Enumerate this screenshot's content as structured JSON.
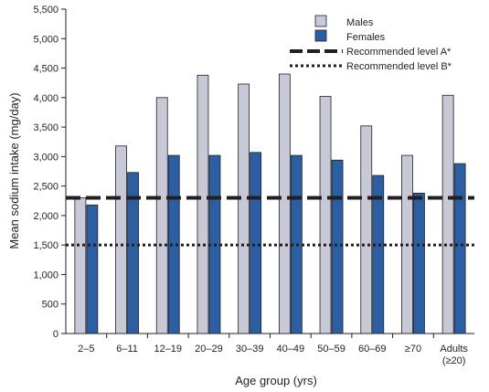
{
  "chart_data": {
    "type": "bar",
    "title": "",
    "xlabel": "Age group (yrs)",
    "ylabel": "Mean sodium intake (mg/day)",
    "ylim": [
      0,
      5500
    ],
    "yticks": [
      0,
      500,
      1000,
      1500,
      2000,
      2500,
      3000,
      3500,
      4000,
      4500,
      5000,
      5500
    ],
    "ytick_labels": [
      "0",
      "500",
      "1,000",
      "1,500",
      "2,000",
      "2,500",
      "3,000",
      "3,500",
      "4,000",
      "4,500",
      "5,000",
      "5,500"
    ],
    "categories": [
      [
        "2–5"
      ],
      [
        "6–11"
      ],
      [
        "12–19"
      ],
      [
        "20–29"
      ],
      [
        "30–39"
      ],
      [
        "40–49"
      ],
      [
        "50–59"
      ],
      [
        "60–69"
      ],
      [
        "≥70"
      ],
      [
        "Adults",
        "(≥20)"
      ]
    ],
    "series": [
      {
        "name": "Males",
        "color": "#c8c9d6",
        "values": [
          2300,
          3180,
          4000,
          4380,
          4230,
          4400,
          4020,
          3520,
          3020,
          4040
        ]
      },
      {
        "name": "Females",
        "color": "#2a5fa3",
        "values": [
          2180,
          2730,
          3020,
          3020,
          3070,
          3020,
          2940,
          2680,
          2380,
          2880
        ]
      }
    ],
    "reference_lines": [
      {
        "name": "Recommended level A*",
        "value": 2300,
        "style": "dashed"
      },
      {
        "name": "Recommended level B*",
        "value": 1500,
        "style": "dotted"
      }
    ],
    "legend_position": "top-right",
    "grid": false
  }
}
